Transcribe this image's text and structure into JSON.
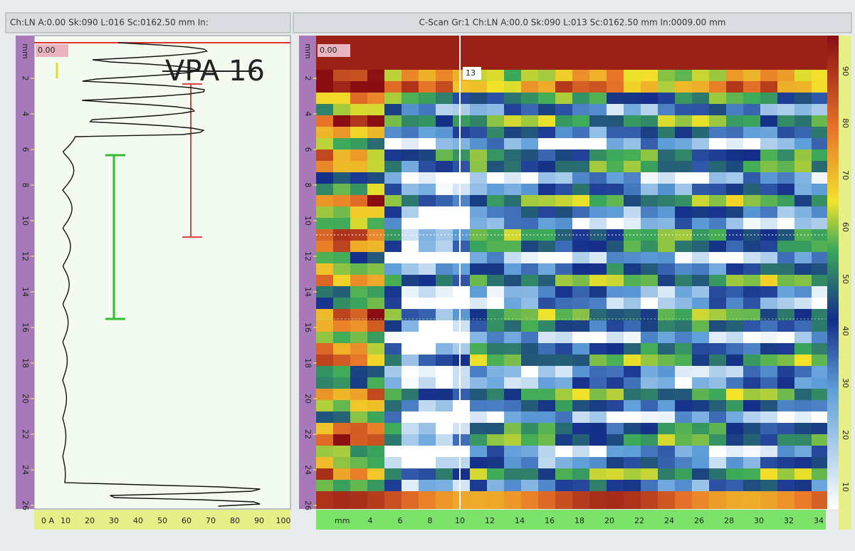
{
  "left_panel": {
    "header": "Ch:LN A:0.00 Sk:090 L:016 Sc:0162.50 mm In:",
    "cursor_label": "0.00",
    "title": "VPA 16",
    "depth_unit": "mm",
    "depth_ticks": [
      "2",
      "4",
      "6",
      "8",
      "10",
      "12",
      "14",
      "16",
      "18",
      "20",
      "22",
      "24",
      "26"
    ],
    "amplitude_ticks": [
      "0 A",
      "10",
      "20",
      "30",
      "40",
      "50",
      "60",
      "70",
      "80",
      "90",
      "100"
    ]
  },
  "right_panel": {
    "header": "C-Scan Gr:1 Ch:LN A:00.0 Sk:090 L:013 Sc:0162.50 mm In:0009.00 mm",
    "cursor_label": "0.00",
    "marker_label": "13",
    "depth_unit": "mm",
    "depth_ticks": [
      "2",
      "4",
      "6",
      "8",
      "10",
      "12",
      "14",
      "16",
      "18",
      "20",
      "22",
      "24",
      "26"
    ],
    "scan_unit": "mm",
    "scan_ticks": [
      "4",
      "6",
      "8",
      "10",
      "12",
      "14",
      "16",
      "18",
      "20",
      "22",
      "24",
      "26",
      "28",
      "30",
      "32",
      "34"
    ],
    "color_scale_ticks": [
      "90",
      "80",
      "70",
      "60",
      "50",
      "40",
      "30",
      "20",
      "10"
    ]
  }
}
